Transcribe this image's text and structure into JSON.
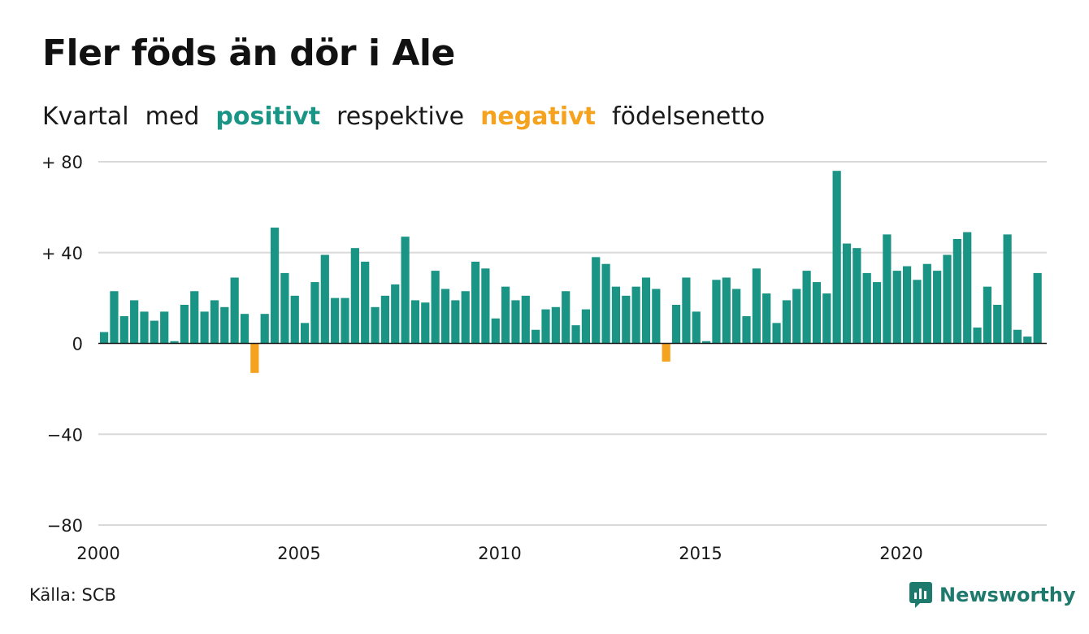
{
  "title": "Fler föds än dör i Ale",
  "subtitle": {
    "part1": "Kvartal",
    "part2": "med",
    "positive": "positivt",
    "part3": "respektive",
    "negative": "negativt",
    "part4": "födelsenetto"
  },
  "source": "Källa: SCB",
  "brand": "Newsworthy",
  "colors": {
    "positive": "#1a9485",
    "negative": "#f5a21f",
    "grid": "#d9d9d9",
    "axis": "#1a1a1a",
    "brand": "#1f7a6e"
  },
  "chart_data": {
    "type": "bar",
    "title": "Fler föds än dör i Ale",
    "subtitle": "Kvartal med positivt respektive negativt födelsenetto",
    "xlabel": "",
    "ylabel": "",
    "x_start": "2000 Q1",
    "x_step": "quarter",
    "ylim": [
      -80,
      80
    ],
    "yticks": [
      80,
      40,
      0,
      -40,
      -80
    ],
    "ytick_labels": [
      "+ 80",
      "+ 40",
      "0",
      "−40",
      "−80"
    ],
    "xtick_labels": [
      "2000",
      "2005",
      "2010",
      "2015",
      "2020"
    ],
    "grid": true,
    "values": [
      5,
      23,
      12,
      19,
      14,
      10,
      14,
      1,
      17,
      23,
      14,
      19,
      16,
      29,
      13,
      -13,
      13,
      51,
      31,
      21,
      9,
      27,
      39,
      20,
      20,
      42,
      36,
      16,
      21,
      26,
      47,
      19,
      18,
      32,
      24,
      19,
      23,
      36,
      33,
      11,
      25,
      19,
      21,
      6,
      15,
      16,
      23,
      8,
      15,
      38,
      35,
      25,
      21,
      25,
      29,
      24,
      -8,
      17,
      29,
      14,
      1,
      28,
      29,
      24,
      12,
      33,
      22,
      9,
      19,
      24,
      32,
      27,
      22,
      76,
      44,
      42,
      31,
      27,
      48,
      32,
      34,
      28,
      35,
      32,
      39,
      46,
      49,
      7,
      25,
      17,
      48,
      6,
      3,
      31
    ]
  }
}
